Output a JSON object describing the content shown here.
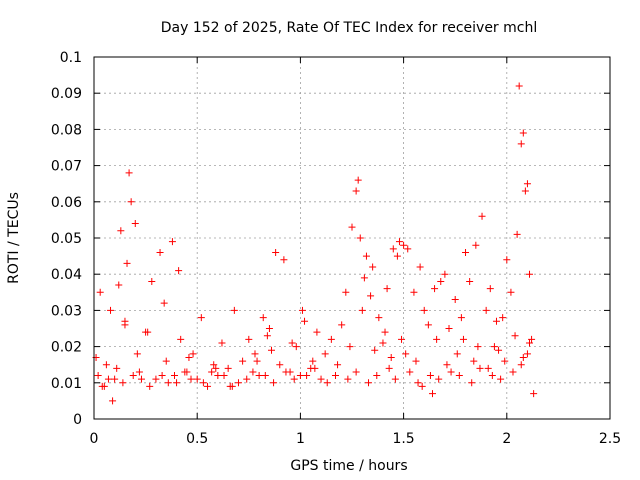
{
  "chart_data": {
    "type": "scatter",
    "title": "Day 152 of 2025, Rate Of TEC Index for receiver mchl",
    "xlabel": "GPS time / hours",
    "ylabel": "ROTI / TECUs",
    "xlim": [
      0,
      2.5
    ],
    "ylim": [
      0,
      0.1
    ],
    "xticks": [
      0,
      0.5,
      1,
      1.5,
      2,
      2.5
    ],
    "xtick_labels": [
      "0",
      "0.5",
      "1",
      "1.5",
      "2",
      "2.5"
    ],
    "yticks": [
      0,
      0.01,
      0.02,
      0.03,
      0.04,
      0.05,
      0.06,
      0.07,
      0.08,
      0.09,
      0.1
    ],
    "ytick_labels": [
      "0",
      "0.01",
      "0.02",
      "0.03",
      "0.04",
      "0.05",
      "0.06",
      "0.07",
      "0.08",
      "0.09",
      "0.1"
    ],
    "grid": true,
    "marker": "+",
    "color": "#ff0000",
    "series": [
      {
        "x": [
          0.02,
          0.03,
          0.05,
          0.06,
          0.08,
          0.1,
          0.12,
          0.13,
          0.15,
          0.16,
          0.17,
          0.18,
          0.2,
          0.22,
          0.25,
          0.28,
          0.3,
          0.32,
          0.35,
          0.38,
          0.4,
          0.42,
          0.45,
          0.48,
          0.5,
          0.52,
          0.55,
          0.58,
          0.6,
          0.62,
          0.65,
          0.68,
          0.7,
          0.72,
          0.75,
          0.78,
          0.8,
          0.82,
          0.85,
          0.88,
          0.9,
          0.92,
          0.95,
          0.98,
          1.0,
          1.02,
          1.05,
          1.08,
          1.1,
          1.12,
          1.15,
          1.18,
          1.2,
          1.22,
          1.25,
          1.27,
          1.28,
          1.29,
          1.3,
          1.32,
          1.35,
          1.38,
          1.4,
          1.42,
          1.45,
          1.47,
          1.48,
          1.5,
          1.52,
          1.55,
          1.58,
          1.6,
          1.62,
          1.65,
          1.68,
          1.7,
          1.72,
          1.75,
          1.78,
          1.8,
          1.82,
          1.85,
          1.88,
          1.9,
          1.92,
          1.95,
          1.98,
          2.0,
          2.02,
          2.05,
          2.06,
          2.07,
          2.08,
          2.09,
          2.1,
          2.11,
          2.12,
          2.13,
          0.01,
          0.04,
          0.07,
          0.11,
          0.14,
          0.19,
          0.23,
          0.27,
          0.33,
          0.36,
          0.44,
          0.47,
          0.53,
          0.57,
          0.63,
          0.67,
          0.74,
          0.77,
          0.83,
          0.87,
          0.93,
          0.97,
          1.03,
          1.07,
          1.13,
          1.17,
          1.23,
          1.27,
          1.33,
          1.37,
          1.43,
          1.46,
          1.53,
          1.57,
          1.63,
          1.67,
          1.73,
          1.77,
          1.83,
          1.87,
          1.93,
          1.97,
          2.03,
          2.07,
          2.1,
          0.09,
          0.15,
          0.21,
          0.26,
          0.34,
          0.39,
          0.41,
          0.46,
          0.59,
          0.66,
          0.79,
          0.84,
          0.86,
          0.96,
          1.01,
          1.06,
          1.24,
          1.31,
          1.34,
          1.36,
          1.41,
          1.44,
          1.49,
          1.51,
          1.56,
          1.59,
          1.64,
          1.66,
          1.71,
          1.76,
          1.79,
          1.84,
          1.86,
          1.91,
          1.94,
          1.96,
          1.99,
          2.04,
          2.08,
          2.11
        ],
        "y": [
          0.012,
          0.035,
          0.009,
          0.015,
          0.03,
          0.011,
          0.037,
          0.052,
          0.026,
          0.043,
          0.068,
          0.06,
          0.054,
          0.013,
          0.024,
          0.038,
          0.011,
          0.046,
          0.016,
          0.049,
          0.01,
          0.022,
          0.013,
          0.018,
          0.011,
          0.028,
          0.009,
          0.015,
          0.012,
          0.021,
          0.014,
          0.03,
          0.01,
          0.016,
          0.022,
          0.018,
          0.012,
          0.028,
          0.025,
          0.046,
          0.015,
          0.044,
          0.013,
          0.02,
          0.012,
          0.027,
          0.014,
          0.024,
          0.011,
          0.018,
          0.022,
          0.015,
          0.026,
          0.035,
          0.053,
          0.063,
          0.066,
          0.05,
          0.03,
          0.045,
          0.042,
          0.028,
          0.021,
          0.036,
          0.047,
          0.045,
          0.049,
          0.048,
          0.047,
          0.035,
          0.042,
          0.03,
          0.026,
          0.036,
          0.038,
          0.04,
          0.025,
          0.033,
          0.028,
          0.046,
          0.038,
          0.048,
          0.056,
          0.03,
          0.036,
          0.027,
          0.028,
          0.044,
          0.035,
          0.051,
          0.092,
          0.076,
          0.079,
          0.063,
          0.065,
          0.04,
          0.022,
          0.007,
          0.017,
          0.009,
          0.011,
          0.014,
          0.01,
          0.012,
          0.011,
          0.009,
          0.012,
          0.01,
          0.013,
          0.011,
          0.01,
          0.013,
          0.012,
          0.009,
          0.011,
          0.013,
          0.012,
          0.01,
          0.013,
          0.011,
          0.012,
          0.014,
          0.01,
          0.012,
          0.011,
          0.013,
          0.01,
          0.012,
          0.014,
          0.011,
          0.013,
          0.01,
          0.012,
          0.011,
          0.013,
          0.012,
          0.01,
          0.014,
          0.012,
          0.011,
          0.013,
          0.015,
          0.018,
          0.005,
          0.027,
          0.018,
          0.024,
          0.032,
          0.012,
          0.041,
          0.017,
          0.014,
          0.009,
          0.016,
          0.023,
          0.019,
          0.021,
          0.03,
          0.016,
          0.02,
          0.039,
          0.034,
          0.019,
          0.024,
          0.017,
          0.022,
          0.018,
          0.016,
          0.009,
          0.007,
          0.022,
          0.015,
          0.018,
          0.022,
          0.016,
          0.02,
          0.014,
          0.02,
          0.019,
          0.016,
          0.023,
          0.017,
          0.021
        ]
      }
    ]
  }
}
